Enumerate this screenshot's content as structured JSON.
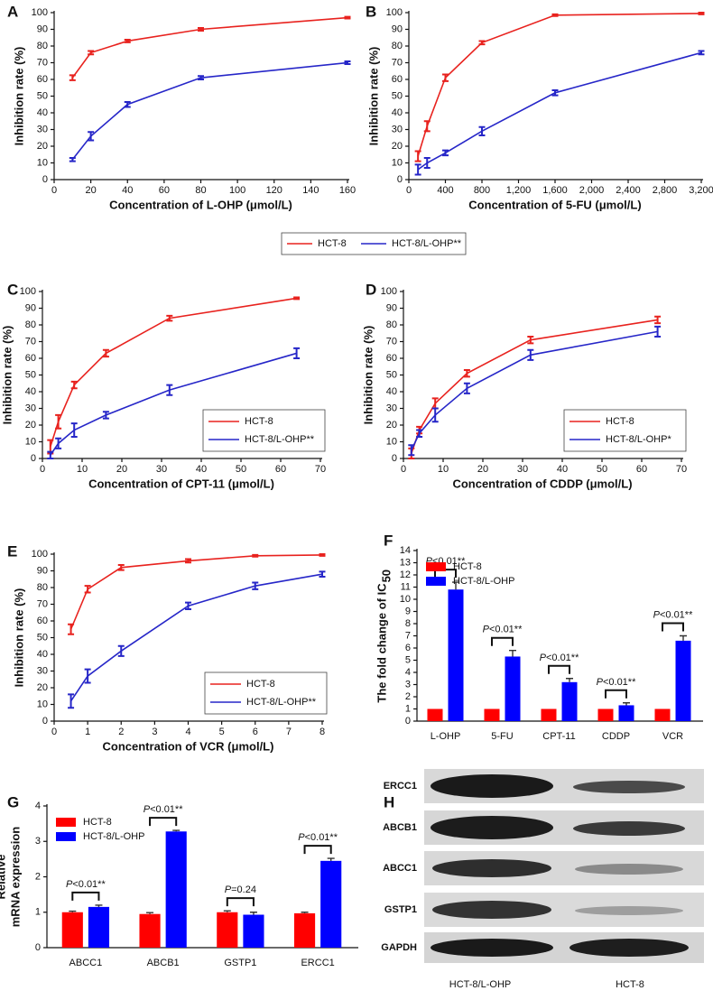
{
  "chart_data": [
    {
      "type": "line",
      "panel": "A",
      "x_label": "Concentration of L-OHP (μmol/L)",
      "y_label": "Inhibition rate (%)",
      "x": [
        10,
        20,
        40,
        80,
        160
      ],
      "xlim": [
        0,
        160
      ],
      "xticks": [
        0,
        20,
        40,
        60,
        80,
        100,
        120,
        140,
        160
      ],
      "ylim": [
        0,
        100
      ],
      "yticks": [
        0,
        10,
        20,
        30,
        40,
        50,
        60,
        70,
        80,
        90,
        100
      ],
      "legend": "below",
      "series": [
        {
          "name": "HCT-8",
          "color": "#e8221e",
          "values": [
            61,
            76,
            83,
            90,
            97
          ],
          "errors": [
            1.5,
            1,
            0.8,
            0.8,
            0.5
          ]
        },
        {
          "name": "HCT-8/L-OHP**",
          "color": "#2626c8",
          "values": [
            12,
            26,
            45,
            61,
            70
          ],
          "errors": [
            1,
            2.5,
            1.5,
            1,
            0.8
          ]
        }
      ]
    },
    {
      "type": "line",
      "panel": "B",
      "x_label": "Concentration of 5-FU (μmol/L)",
      "y_label": "Inhibition rate (%)",
      "x": [
        100,
        200,
        400,
        800,
        1600,
        3200
      ],
      "xlim": [
        0,
        3200
      ],
      "xticks": [
        0,
        400,
        800,
        {
          "value": 1200,
          "label": "1,200"
        },
        {
          "value": 1600,
          "label": "1,600"
        },
        {
          "value": 2000,
          "label": "2,000"
        },
        {
          "value": 2400,
          "label": "2,400"
        },
        {
          "value": 2800,
          "label": "2,800"
        },
        {
          "value": 3200,
          "label": "3,200"
        }
      ],
      "ylim": [
        0,
        100
      ],
      "yticks": [
        0,
        10,
        20,
        30,
        40,
        50,
        60,
        70,
        80,
        90,
        100
      ],
      "series": [
        {
          "color": "#e8221e",
          "values": [
            14,
            32,
            61,
            82,
            98.5,
            99.5
          ],
          "errors": [
            3,
            3,
            2,
            1,
            0.5,
            0.5
          ]
        },
        {
          "color": "#2626c8",
          "values": [
            6,
            10,
            16,
            29,
            52,
            76
          ],
          "errors": [
            3,
            3,
            1.5,
            2.5,
            1.5,
            1
          ]
        }
      ]
    },
    {
      "type": "line",
      "panel": "C",
      "x_label": "Concentration of CPT-11 (μmol/L)",
      "y_label": "Inhibition rate (%)",
      "x": [
        2,
        4,
        8,
        16,
        32,
        64
      ],
      "xlim": [
        0,
        70
      ],
      "xticks": [
        0,
        10,
        20,
        30,
        40,
        50,
        60,
        70
      ],
      "ylim": [
        0,
        100
      ],
      "yticks": [
        0,
        10,
        20,
        30,
        40,
        50,
        60,
        70,
        80,
        90,
        100
      ],
      "legend": "bottom-right",
      "series": [
        {
          "name": "HCT-8",
          "color": "#e8221e",
          "values": [
            7,
            22,
            44,
            63,
            84,
            96
          ],
          "errors": [
            4,
            4,
            2,
            2,
            1.5,
            0.5
          ]
        },
        {
          "name": "HCT-8/L-OHP**",
          "color": "#2626c8",
          "values": [
            2,
            9,
            17,
            26,
            41,
            63
          ],
          "errors": [
            2,
            3,
            4,
            2,
            3,
            3
          ]
        }
      ]
    },
    {
      "type": "line",
      "panel": "D",
      "x_label": "Concentration of CDDP (μmol/L)",
      "y_label": "Inhibition rate (%)",
      "x": [
        2,
        4,
        8,
        16,
        32,
        64
      ],
      "xlim": [
        0,
        70
      ],
      "xticks": [
        0,
        10,
        20,
        30,
        40,
        50,
        60,
        70
      ],
      "ylim": [
        0,
        100
      ],
      "yticks": [
        0,
        10,
        20,
        30,
        40,
        50,
        60,
        70,
        80,
        90,
        100
      ],
      "legend": "bottom-right",
      "series": [
        {
          "name": "HCT-8",
          "color": "#e8221e",
          "values": [
            3,
            17,
            33,
            51,
            71,
            83
          ],
          "errors": [
            3,
            2,
            3,
            2,
            2,
            2
          ]
        },
        {
          "name": "HCT-8/L-OHP*",
          "color": "#2626c8",
          "values": [
            5,
            15,
            26,
            42,
            62,
            76
          ],
          "errors": [
            3,
            2,
            4,
            3,
            3,
            3
          ]
        }
      ]
    },
    {
      "type": "line",
      "panel": "E",
      "x_label": "Concentration of VCR (μmol/L)",
      "y_label": "Inhibition rate (%)",
      "x": [
        0.5,
        1,
        2,
        4,
        6,
        8
      ],
      "xlim": [
        0,
        8
      ],
      "xticks": [
        0,
        1,
        2,
        3,
        4,
        5,
        6,
        7,
        8
      ],
      "ylim": [
        0,
        100
      ],
      "yticks": [
        0,
        10,
        20,
        30,
        40,
        50,
        60,
        70,
        80,
        90,
        100
      ],
      "legend": "bottom-right",
      "series": [
        {
          "name": "HCT-8",
          "color": "#e8221e",
          "values": [
            55,
            79,
            92,
            96,
            99,
            99.5
          ],
          "errors": [
            3,
            2,
            1.5,
            1,
            0.5,
            0.5
          ]
        },
        {
          "name": "HCT-8/L-OHP**",
          "color": "#2626c8",
          "values": [
            12,
            27,
            42,
            69,
            81,
            88
          ],
          "errors": [
            4,
            4,
            3,
            2,
            2,
            1.5
          ]
        }
      ]
    },
    {
      "type": "bar",
      "panel": "F",
      "y_label": "The fold change of IC",
      "y_label_subscript": "50",
      "categories": [
        "L-OHP",
        "5-FU",
        "CPT-11",
        "CDDP",
        "VCR"
      ],
      "ylim": [
        0,
        14
      ],
      "yticks": [
        0,
        1,
        2,
        3,
        4,
        5,
        6,
        7,
        8,
        9,
        10,
        11,
        12,
        13,
        14
      ],
      "legend": "top-left",
      "series": [
        {
          "name": "HCT-8",
          "color": "#ff0000",
          "values": [
            1,
            1,
            1,
            1,
            1
          ]
        },
        {
          "name": "HCT-8/L-OHP",
          "color": "#0000ff",
          "values": [
            10.8,
            5.3,
            3.2,
            1.3,
            6.6
          ],
          "errors": [
            0.6,
            0.5,
            0.3,
            0.2,
            0.4
          ]
        }
      ],
      "annotations": [
        "P<0.01**",
        "P<0.01**",
        "P<0.01**",
        "P<0.01**",
        "P<0.01**"
      ]
    },
    {
      "type": "bar",
      "panel": "G",
      "y_label": [
        "Relative",
        "mRNA expression"
      ],
      "categories": [
        "ABCC1",
        "ABCB1",
        "GSTP1",
        "ERCC1"
      ],
      "ylim": [
        0,
        4
      ],
      "yticks": [
        0,
        1,
        2,
        3,
        4
      ],
      "legend": "top-left",
      "series": [
        {
          "name": "HCT-8",
          "color": "#ff0000",
          "values": [
            1.0,
            0.95,
            1.0,
            0.97
          ],
          "errors": [
            0.03,
            0.04,
            0.04,
            0.03
          ]
        },
        {
          "name": "HCT-8/L-OHP",
          "color": "#0000ff",
          "values": [
            1.15,
            3.28,
            0.93,
            2.45
          ],
          "errors": [
            0.05,
            0.03,
            0.07,
            0.07
          ]
        }
      ],
      "annotations": [
        "P<0.01**",
        "P<0.01**",
        "P=0.24",
        "P<0.01**"
      ]
    }
  ],
  "blot": {
    "panel": "H",
    "rows": [
      "ERCC1",
      "ABCB1",
      "ABCC1",
      "GSTP1",
      "GAPDH"
    ],
    "columns": [
      "HCT-8/L-OHP",
      "HCT-8"
    ]
  }
}
